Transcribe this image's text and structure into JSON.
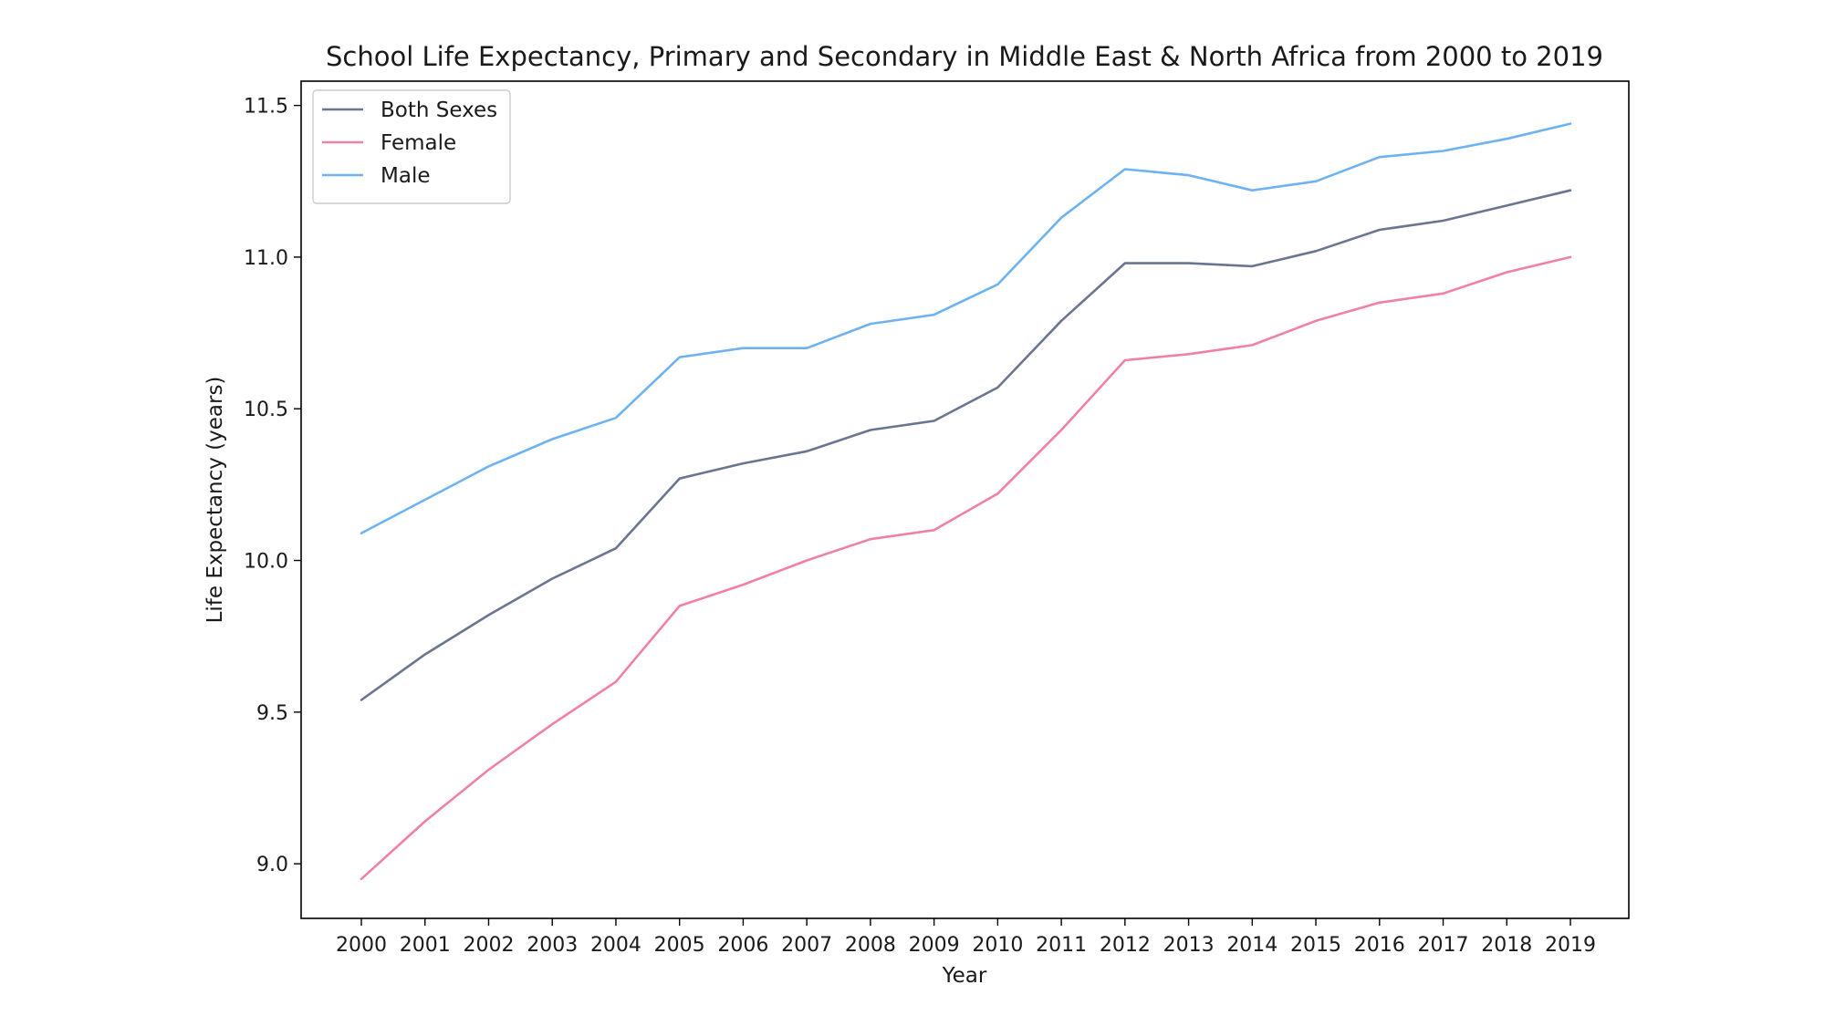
{
  "chart_data": {
    "type": "line",
    "title": "School Life Expectancy, Primary and Secondary in Middle East & North Africa from 2000 to 2019",
    "xlabel": "Year",
    "ylabel": "Life Expectancy (years)",
    "x": [
      2000,
      2001,
      2002,
      2003,
      2004,
      2005,
      2006,
      2007,
      2008,
      2009,
      2010,
      2011,
      2012,
      2013,
      2014,
      2015,
      2016,
      2017,
      2018,
      2019
    ],
    "x_tick_labels": [
      "2000",
      "2001",
      "2002",
      "2003",
      "2004",
      "2005",
      "2006",
      "2007",
      "2008",
      "2009",
      "2010",
      "2011",
      "2012",
      "2013",
      "2014",
      "2015",
      "2016",
      "2017",
      "2018",
      "2019"
    ],
    "ylim": [
      8.82,
      11.58
    ],
    "y_ticks": [
      9.0,
      9.5,
      10.0,
      10.5,
      11.0,
      11.5
    ],
    "y_tick_labels": [
      "9.0",
      "9.5",
      "10.0",
      "10.5",
      "11.0",
      "11.5"
    ],
    "grid": false,
    "legend_position": "top-left",
    "series": [
      {
        "name": "Both Sexes",
        "color": "#6b7591",
        "values": [
          9.54,
          9.69,
          9.82,
          9.94,
          10.04,
          10.27,
          10.32,
          10.36,
          10.43,
          10.46,
          10.57,
          10.79,
          10.98,
          10.98,
          10.97,
          11.02,
          11.09,
          11.12,
          11.17,
          11.22
        ]
      },
      {
        "name": "Female",
        "color": "#f080a8",
        "values": [
          8.95,
          9.14,
          9.31,
          9.46,
          9.6,
          9.85,
          9.92,
          10.0,
          10.07,
          10.1,
          10.22,
          10.43,
          10.66,
          10.68,
          10.71,
          10.79,
          10.85,
          10.88,
          10.95,
          11.0
        ]
      },
      {
        "name": "Male",
        "color": "#6db3f2",
        "values": [
          10.09,
          10.2,
          10.31,
          10.4,
          10.47,
          10.67,
          10.7,
          10.7,
          10.78,
          10.81,
          10.91,
          11.13,
          11.29,
          11.27,
          11.22,
          11.25,
          11.33,
          11.35,
          11.39,
          11.44
        ]
      }
    ]
  }
}
